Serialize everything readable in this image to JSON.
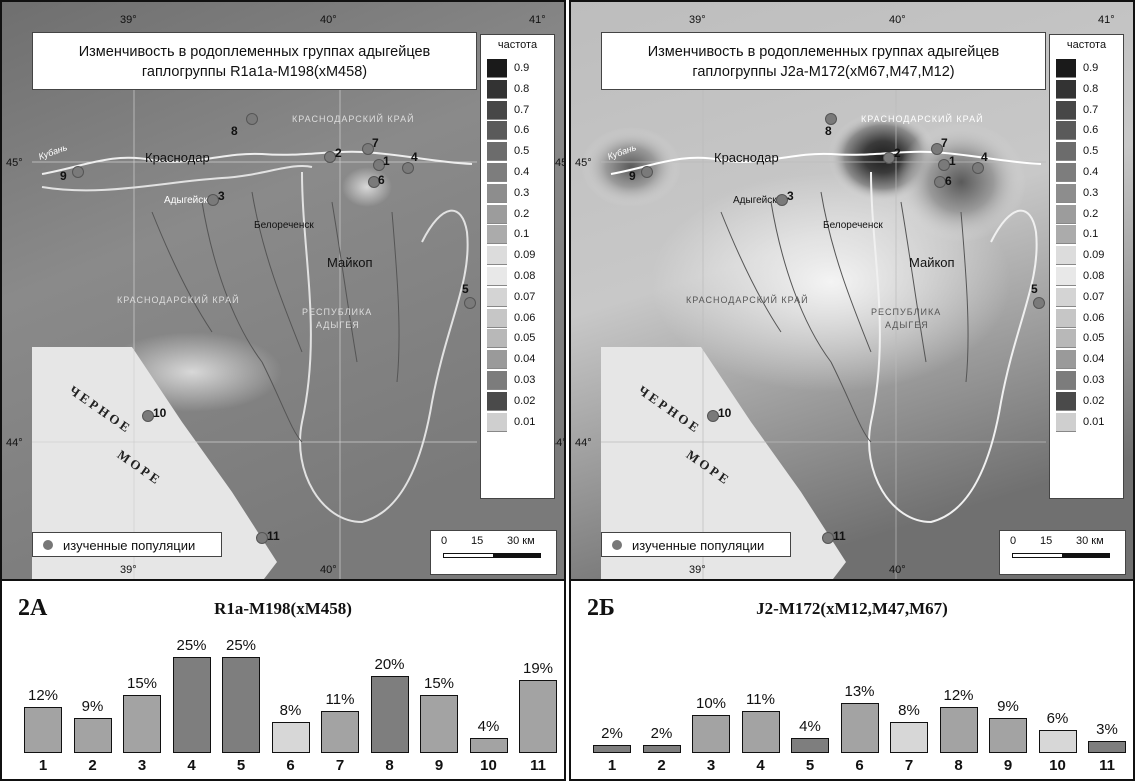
{
  "colors": {
    "bar_dark": "#7e7e7e",
    "bar_mid": "#a3a3a3",
    "bar_light": "#d7d7d7",
    "population_dot": "#7a7a7a"
  },
  "map_labels": {
    "lon_39": "39°",
    "lon_40": "40°",
    "lon_41": "41°",
    "lat_45": "45°",
    "lat_44": "44°",
    "city_krasnodar": "Краснодар",
    "city_adygeysk": "Адыгейск",
    "city_belorechensk": "Белореченск",
    "city_maykop": "Майкоп",
    "region_krasnodar_top": "КРАСНОДАРСКИЙ КРАЙ",
    "region_krasnodar_mid": "КРАСНОДАРСКИЙ КРАЙ",
    "region_adygea_1": "РЕСПУБЛИКА",
    "region_adygea_2": "АДЫГЕЯ",
    "sea_line1": "ЧЕРНОЕ",
    "sea_line2": "МОРЕ",
    "river_kuban": "Кубань",
    "legend_title": "частота",
    "legend_values": [
      "0.9",
      "0.8",
      "0.7",
      "0.6",
      "0.5",
      "0.4",
      "0.3",
      "0.2",
      "0.1",
      "0.09",
      "0.08",
      "0.07",
      "0.06",
      "0.05",
      "0.04",
      "0.03",
      "0.02",
      "0.01"
    ],
    "legend_colors": [
      "#1a1a1a",
      "#333333",
      "#474747",
      "#5a5a5a",
      "#6c6c6c",
      "#7d7d7d",
      "#8d8d8d",
      "#9c9c9c",
      "#ababab",
      "#dcdcdc",
      "#e8e8e8",
      "#d4d4d4",
      "#c6c6c6",
      "#b8b8b8",
      "#9a9a9a",
      "#7c7c7c",
      "#4a4a4a",
      "#cfcfcf"
    ],
    "populations_legend": "изученные популяции",
    "scale_0": "0",
    "scale_15": "15",
    "scale_30": "30 км",
    "pop_numbers": [
      "1",
      "2",
      "3",
      "4",
      "5",
      "6",
      "7",
      "8",
      "9",
      "10",
      "11"
    ]
  },
  "panel_a": {
    "map_title_line1": "Изменчивость в родоплеменных группах адыгейцев",
    "map_title_line2": "гаплогруппы R1a1a-M198(xM458)",
    "chart_tag": "2А",
    "chart_title": "R1a-M198(xM458)"
  },
  "panel_b": {
    "map_title_line1": "Изменчивость в родоплеменных группах адыгейцев",
    "map_title_line2": "гаплогруппы J2a-M172(xM67,M47,M12)",
    "chart_tag": "2Б",
    "chart_title": "J2-M172(xM12,M47,M67)"
  },
  "chart_data": [
    {
      "type": "bar",
      "title": "R1a-M198(xM458)",
      "categories": [
        "1",
        "2",
        "3",
        "4",
        "5",
        "6",
        "7",
        "8",
        "9",
        "10",
        "11"
      ],
      "values": [
        12,
        9,
        15,
        25,
        25,
        8,
        11,
        20,
        15,
        4,
        19
      ],
      "value_labels": [
        "12%",
        "9%",
        "15%",
        "25%",
        "25%",
        "8%",
        "11%",
        "20%",
        "15%",
        "4%",
        "19%"
      ],
      "bar_shades": [
        "mid",
        "mid",
        "mid",
        "dark",
        "dark",
        "light",
        "mid",
        "dark",
        "mid",
        "mid",
        "mid"
      ],
      "ylim": [
        0,
        25
      ]
    },
    {
      "type": "bar",
      "title": "J2-M172(xM12,M47,M67)",
      "categories": [
        "1",
        "2",
        "3",
        "4",
        "5",
        "6",
        "7",
        "8",
        "9",
        "10",
        "11"
      ],
      "values": [
        2,
        2,
        10,
        11,
        4,
        13,
        8,
        12,
        9,
        6,
        3
      ],
      "value_labels": [
        "2%",
        "2%",
        "10%",
        "11%",
        "4%",
        "13%",
        "8%",
        "12%",
        "9%",
        "6%",
        "3%"
      ],
      "bar_shades": [
        "dark",
        "dark",
        "mid",
        "mid",
        "dark",
        "mid",
        "light",
        "mid",
        "mid",
        "light",
        "dark"
      ],
      "ylim": [
        0,
        25
      ]
    }
  ]
}
